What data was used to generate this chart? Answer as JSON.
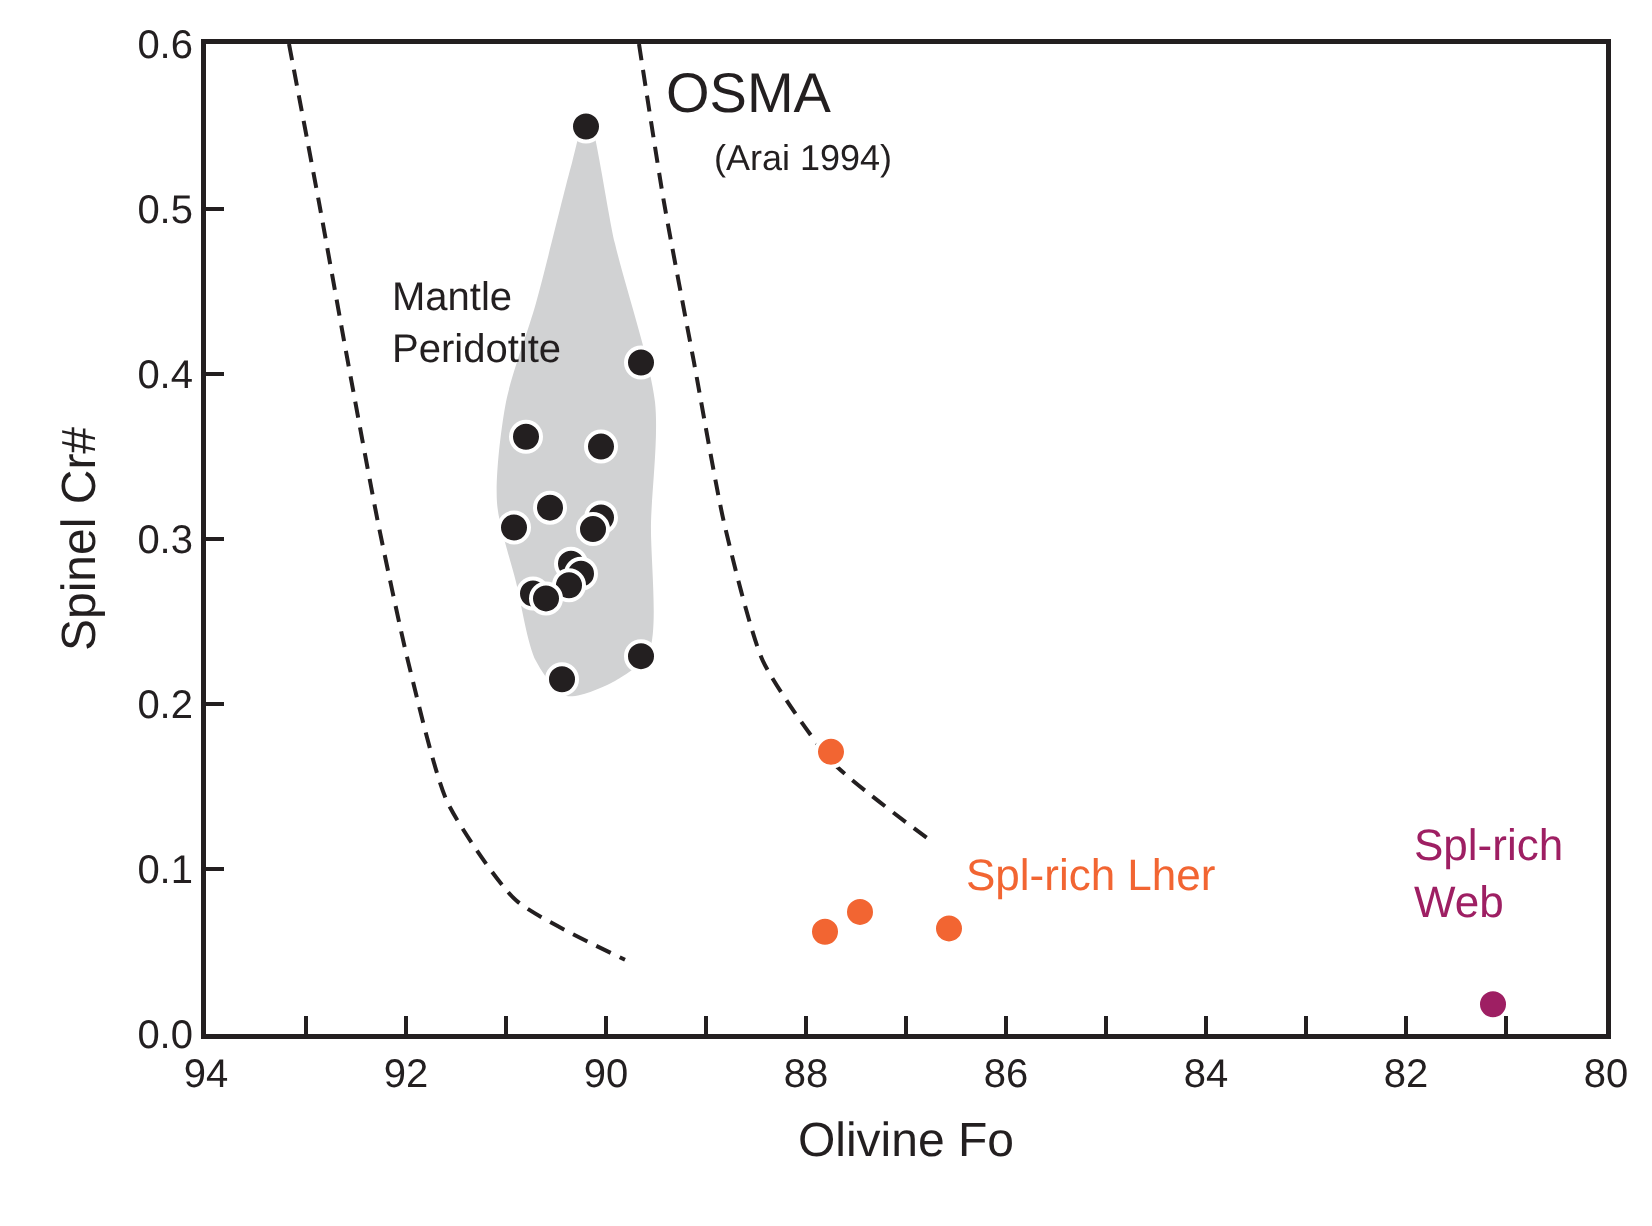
{
  "chart_data": {
    "type": "scatter",
    "xlabel": "Olivine Fo",
    "ylabel": "Spinel Cr#",
    "xlim": [
      94,
      80
    ],
    "ylim": [
      0,
      0.6
    ],
    "xticks": [
      94,
      {
        "value": 93,
        "label": null
      },
      92,
      {
        "value": 91,
        "label": null
      },
      90,
      {
        "value": 89,
        "label": null
      },
      88,
      {
        "value": 87,
        "label": null
      },
      86,
      {
        "value": 85,
        "label": null
      },
      84,
      {
        "value": 83,
        "label": null
      },
      82,
      {
        "value": 81,
        "label": null
      },
      80
    ],
    "yticks": [
      {
        "value": 0,
        "label": "0.0"
      },
      0.1,
      0.2,
      0.3,
      0.4,
      0.5,
      0.6
    ],
    "grid": false,
    "legend": false,
    "marker": "circle",
    "series": [
      {
        "type": "area",
        "marker": "none",
        "color": "#d1d2d3",
        "x": [
          90.19,
          89.91,
          89.51,
          89.55,
          89.57,
          89.91,
          90.4,
          90.7,
          90.9,
          91.09,
          91.0,
          90.7,
          90.34,
          90.19
        ],
        "values": [
          0.558,
          0.479,
          0.383,
          0.31,
          0.232,
          0.214,
          0.205,
          0.226,
          0.274,
          0.322,
          0.383,
          0.443,
          0.528,
          0.558
        ]
      },
      {
        "type": "line",
        "marker": "none",
        "line_style": "dashed",
        "color": "#231f20",
        "x": [
          93.17,
          92.87,
          92.58,
          92.28,
          91.98,
          91.59,
          90.9,
          89.81
        ],
        "values": [
          0.6,
          0.504,
          0.407,
          0.31,
          0.226,
          0.141,
          0.081,
          0.045
        ]
      },
      {
        "type": "line",
        "marker": "none",
        "line_style": "dashed",
        "color": "#231f20",
        "x": [
          89.67,
          89.42,
          89.12,
          88.82,
          88.43,
          87.74,
          86.75
        ],
        "values": [
          0.6,
          0.504,
          0.407,
          0.31,
          0.226,
          0.165,
          0.117
        ]
      },
      {
        "color": "#231f20",
        "x": [
          90.2,
          89.65,
          90.8,
          90.05,
          90.56,
          90.92,
          90.05,
          90.13,
          90.35,
          90.25,
          90.37,
          90.73,
          90.6,
          89.65,
          90.44
        ],
        "values": [
          0.55,
          0.407,
          0.362,
          0.356,
          0.319,
          0.307,
          0.313,
          0.306,
          0.285,
          0.279,
          0.272,
          0.267,
          0.264,
          0.229,
          0.215
        ]
      },
      {
        "name": "Spl-rich Lher",
        "color": "#f26532",
        "x": [
          87.75,
          87.81,
          87.46,
          86.57
        ],
        "values": [
          0.171,
          0.062,
          0.074,
          0.064
        ]
      },
      {
        "name": "Spl-rich\nWeb",
        "color": "#9e1f63",
        "x": [
          81.13
        ],
        "values": [
          0.018
        ]
      }
    ],
    "annotations": [
      "Mantle\nPeridotite",
      "OSMA",
      "(Arai 1994)"
    ]
  }
}
